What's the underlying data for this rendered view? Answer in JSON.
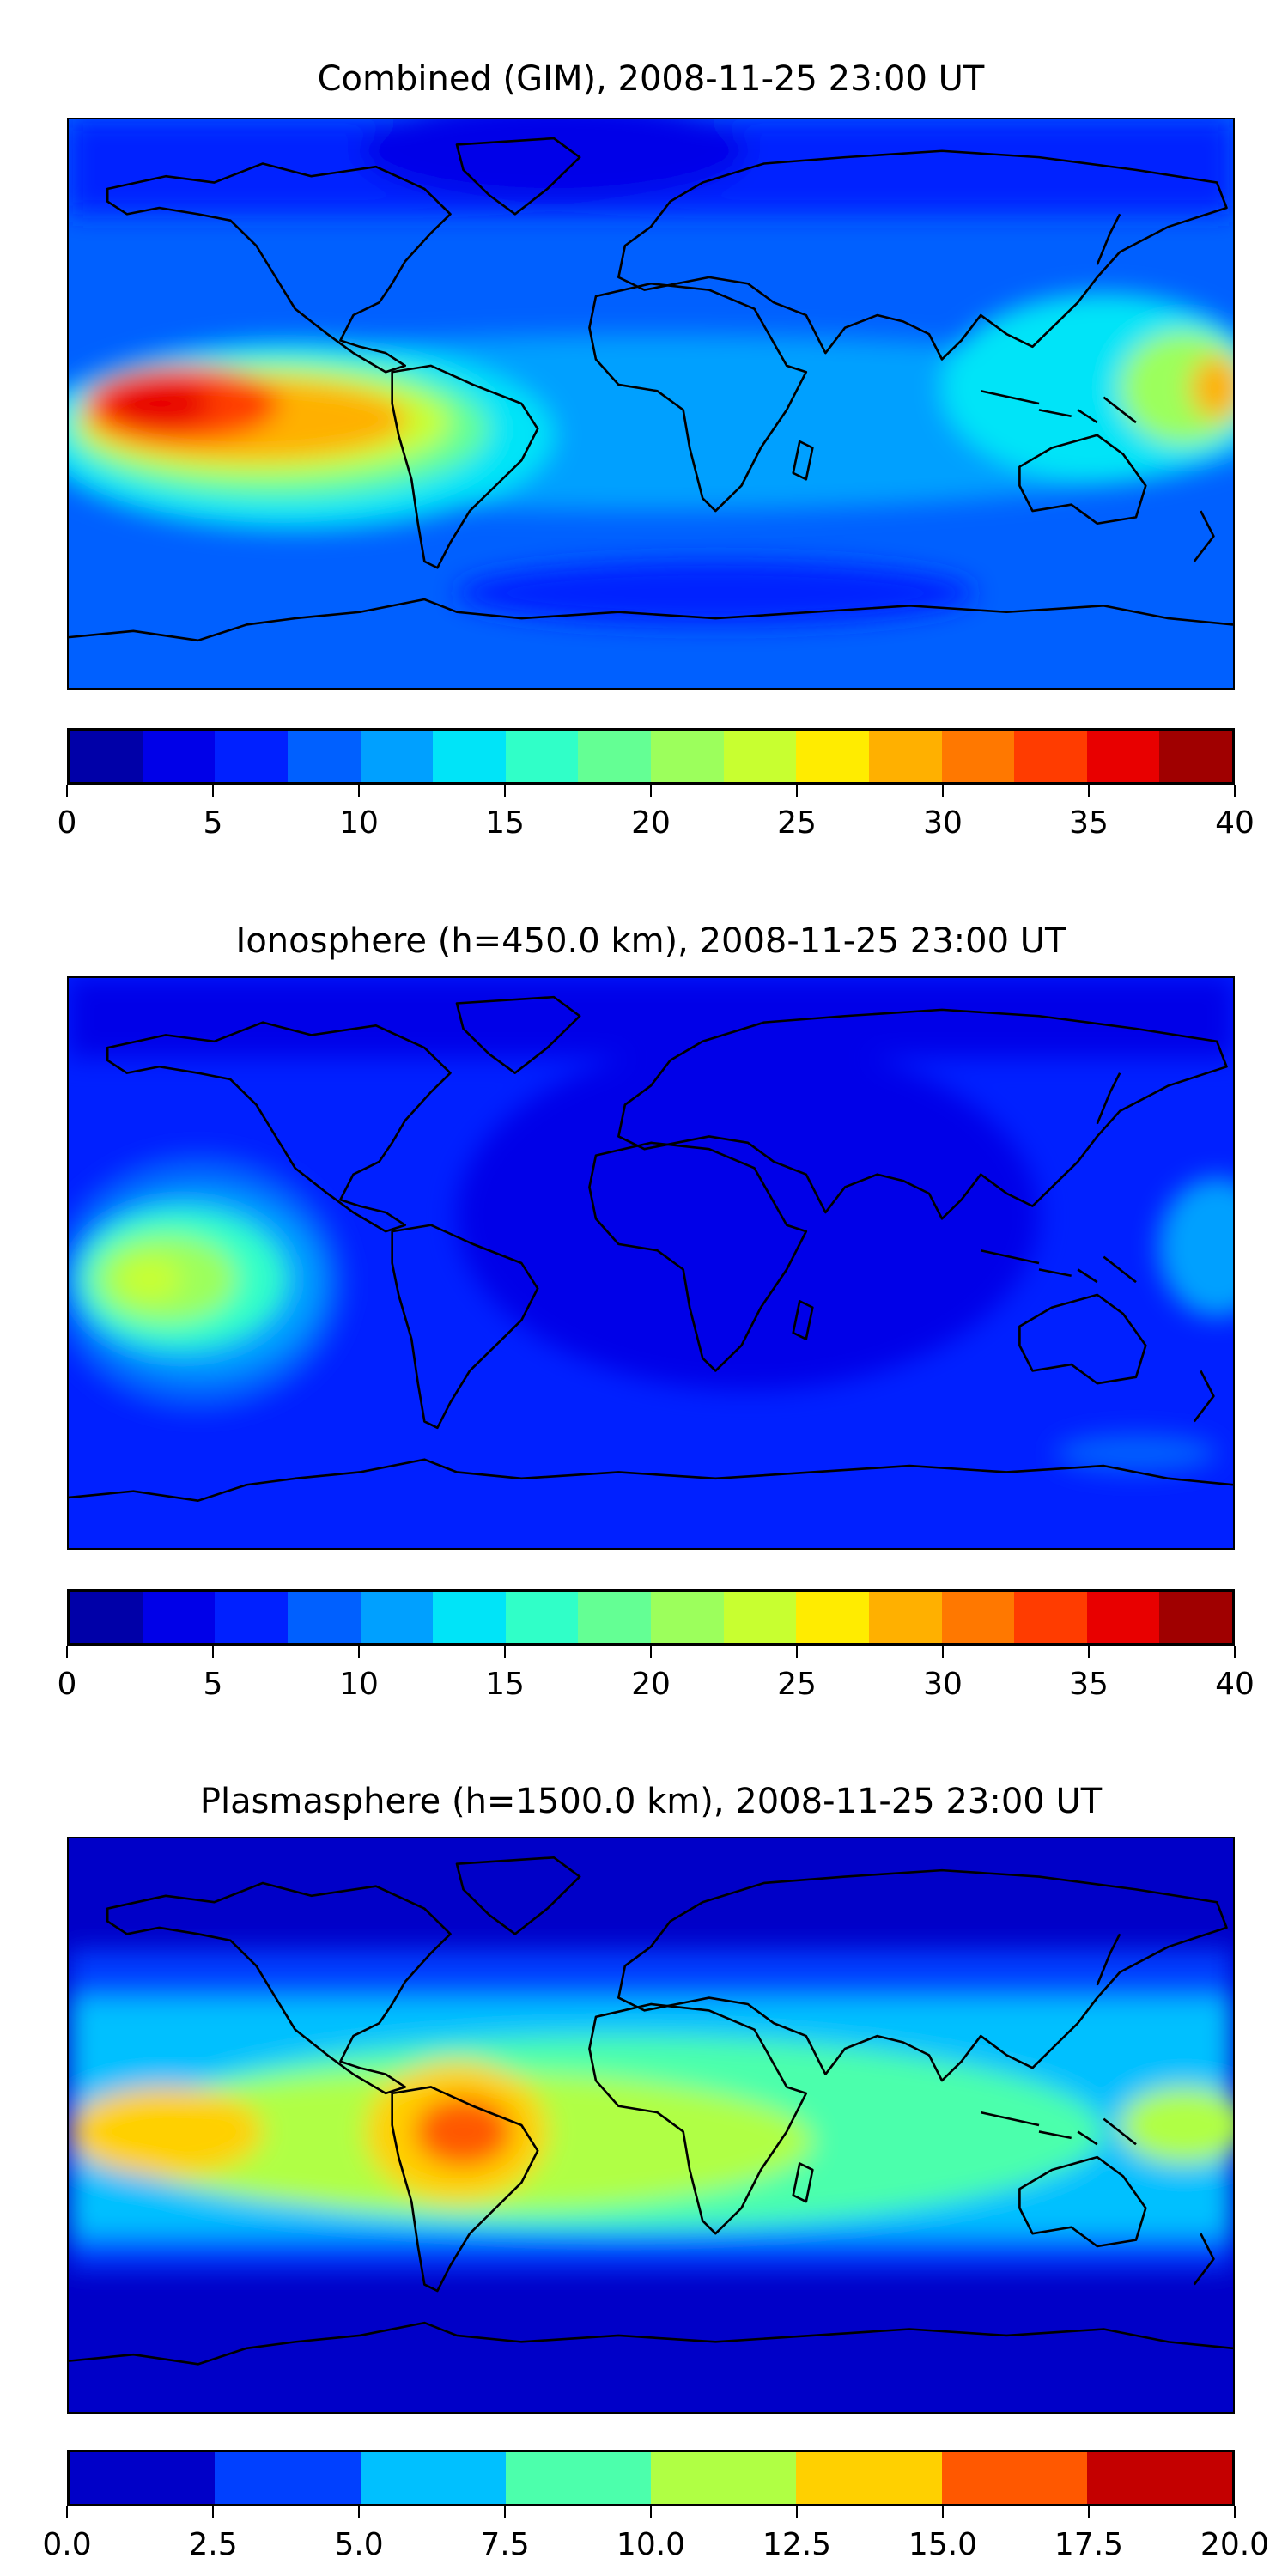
{
  "chart_data": [
    {
      "type": "heatmap",
      "title": "Combined (GIM), 2008-11-25 23:00 UT",
      "colorbar": {
        "range": [
          0,
          40
        ],
        "levels": [
          0,
          2.5,
          5,
          7.5,
          10,
          12.5,
          15,
          17.5,
          20,
          22.5,
          25,
          27.5,
          30,
          32.5,
          35,
          37.5,
          40
        ],
        "tick_labels": [
          "0",
          "5",
          "10",
          "15",
          "20",
          "25",
          "30",
          "35",
          "40"
        ],
        "tick_values": [
          0,
          5,
          10,
          15,
          20,
          25,
          30,
          35,
          40
        ],
        "colors": [
          "#0000a8",
          "#0000e8",
          "#0020ff",
          "#0060ff",
          "#00a0ff",
          "#00e4f8",
          "#30ffc8",
          "#64ff94",
          "#9cff5c",
          "#c8ff30",
          "#ffec00",
          "#ffb000",
          "#ff7800",
          "#ff3c00",
          "#e80000",
          "#a00000"
        ]
      },
      "features": {
        "max_region": "eastern Pacific near 15N, 150W (~35-37.5)",
        "background_level": "7.5-10"
      }
    },
    {
      "type": "heatmap",
      "title": "Ionosphere  (h=450.0 km), 2008-11-25 23:00 UT",
      "colorbar": {
        "range": [
          0,
          40
        ],
        "levels": [
          0,
          2.5,
          5,
          7.5,
          10,
          12.5,
          15,
          17.5,
          20,
          22.5,
          25,
          27.5,
          30,
          32.5,
          35,
          37.5,
          40
        ],
        "tick_labels": [
          "0",
          "5",
          "10",
          "15",
          "20",
          "25",
          "30",
          "35",
          "40"
        ],
        "tick_values": [
          0,
          5,
          10,
          15,
          20,
          25,
          30,
          35,
          40
        ],
        "colors": [
          "#0000a8",
          "#0000e8",
          "#0020ff",
          "#0060ff",
          "#00a0ff",
          "#00e4f8",
          "#30ffc8",
          "#64ff94",
          "#9cff5c",
          "#c8ff30",
          "#ffec00",
          "#ffb000",
          "#ff7800",
          "#ff3c00",
          "#e80000",
          "#a00000"
        ]
      },
      "features": {
        "max_region": "eastern Pacific (~22.5-25)",
        "background_level": "2.5-7.5"
      }
    },
    {
      "type": "heatmap",
      "title": "Plasmasphere (h=1500.0 km), 2008-11-25 23:00 UT",
      "colorbar": {
        "range": [
          0,
          20
        ],
        "levels": [
          0,
          2.5,
          5,
          7.5,
          10,
          12.5,
          15,
          17.5,
          20
        ],
        "tick_labels": [
          "0.0",
          "2.5",
          "5.0",
          "7.5",
          "10.0",
          "12.5",
          "15.0",
          "17.5",
          "20.0"
        ],
        "tick_values": [
          0,
          2.5,
          5,
          7.5,
          10,
          12.5,
          15,
          17.5,
          20
        ],
        "colors": [
          "#0000c8",
          "#0040ff",
          "#00c0ff",
          "#4cffac",
          "#b0ff44",
          "#ffd000",
          "#ff5800",
          "#c40000"
        ]
      },
      "features": {
        "max_region": "northern South America (~15-17.5)",
        "background_level": "0-2.5 at poles"
      }
    }
  ]
}
